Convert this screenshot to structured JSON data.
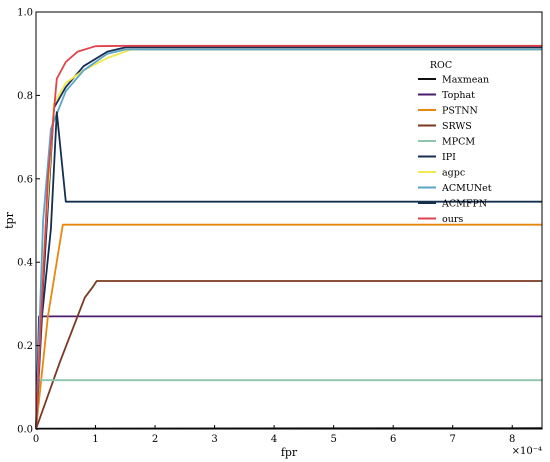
{
  "chart_data": {
    "type": "line",
    "title": "",
    "xlabel": "fpr",
    "ylabel": "tpr",
    "x_multiplier": "×10⁻⁴",
    "xlim": [
      0,
      8.5
    ],
    "ylim": [
      0,
      1.0
    ],
    "x_ticks": [
      "0",
      "1",
      "2",
      "3",
      "4",
      "5",
      "6",
      "7",
      "8"
    ],
    "y_ticks": [
      "0.0",
      "0.2",
      "0.4",
      "0.6",
      "0.8",
      "1.0"
    ],
    "grid": false,
    "legend_title": "ROC",
    "legend_position": "upper-right",
    "series": [
      {
        "name": "Maxmean",
        "color": "#111111",
        "x": [
          0,
          0.05,
          8.5
        ],
        "y": [
          0,
          0.001,
          0.002
        ]
      },
      {
        "name": "Tophat",
        "color": "#4b1c6e",
        "x": [
          0,
          0.05,
          8.5
        ],
        "y": [
          0,
          0.27,
          0.27
        ]
      },
      {
        "name": "PSTNN",
        "color": "#e8870e",
        "x": [
          0,
          0.2,
          0.45,
          8.5
        ],
        "y": [
          0,
          0.27,
          0.49,
          0.49
        ]
      },
      {
        "name": "SRWS",
        "color": "#7a3a22",
        "x": [
          0,
          0.4,
          0.82,
          0.95,
          1.02,
          8.5
        ],
        "y": [
          0,
          0.16,
          0.315,
          0.34,
          0.355,
          0.355
        ]
      },
      {
        "name": "MPCM",
        "color": "#8cc6ae",
        "x": [
          0,
          0.05,
          8.5
        ],
        "y": [
          0,
          0.117,
          0.117
        ]
      },
      {
        "name": "IPI",
        "color": "#1a2d55",
        "x": [
          0,
          0.1,
          0.3,
          0.5,
          0.8,
          1.2,
          1.5,
          8.5
        ],
        "y": [
          0,
          0.3,
          0.77,
          0.82,
          0.87,
          0.905,
          0.915,
          0.915
        ]
      },
      {
        "name": "agpc",
        "color": "#f2e94e",
        "x": [
          0,
          0.1,
          0.3,
          0.5,
          0.8,
          1.2,
          1.6,
          8.5
        ],
        "y": [
          0,
          0.35,
          0.78,
          0.83,
          0.86,
          0.89,
          0.91,
          0.91
        ]
      },
      {
        "name": "ACMUNet",
        "color": "#5aa6c6",
        "x": [
          0,
          0.12,
          0.25,
          0.5,
          0.8,
          1.2,
          1.5,
          8.5
        ],
        "y": [
          0,
          0.5,
          0.72,
          0.81,
          0.86,
          0.9,
          0.91,
          0.91
        ]
      },
      {
        "name": "ACMFPN",
        "color": "#15304e",
        "x": [
          0,
          0.1,
          0.25,
          0.35,
          0.5,
          8.5
        ],
        "y": [
          0,
          0.27,
          0.48,
          0.76,
          0.545,
          0.545
        ]
      },
      {
        "name": "ours",
        "color": "#e0434b",
        "x": [
          0,
          0.08,
          0.2,
          0.35,
          0.5,
          0.7,
          1.0,
          1.5,
          8.5
        ],
        "y": [
          0,
          0.25,
          0.6,
          0.84,
          0.88,
          0.905,
          0.918,
          0.919,
          0.919
        ]
      }
    ]
  }
}
